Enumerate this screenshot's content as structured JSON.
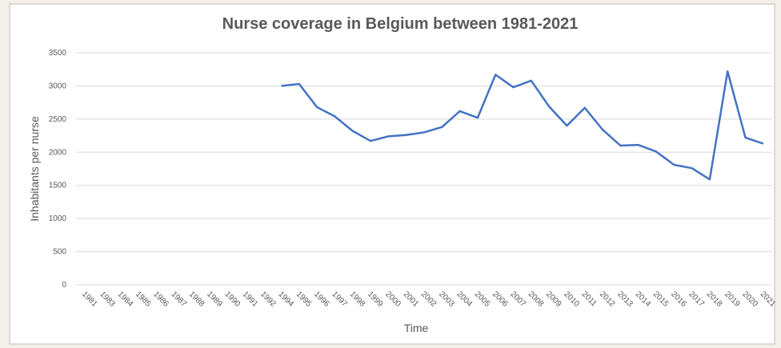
{
  "chart_data": {
    "type": "line",
    "title": "Nurse coverage in Belgium between 1981-2021",
    "xlabel": "Time",
    "ylabel": "Inhabitants per nurse",
    "categories": [
      "1981",
      "1983",
      "1984",
      "1985",
      "1986",
      "1987",
      "1988",
      "1989",
      "1990",
      "1991",
      "1992",
      "1994",
      "1995",
      "1996",
      "1997",
      "1998",
      "1999",
      "2000",
      "2001",
      "2002",
      "2003",
      "2004",
      "2005",
      "2006",
      "2007",
      "2008",
      "2009",
      "2010",
      "2011",
      "2012",
      "2013",
      "2014",
      "2015",
      "2016",
      "2017",
      "2018",
      "2019",
      "2020",
      "2021"
    ],
    "series": [
      {
        "name": "Inhabitants per nurse",
        "color": "#4472c4",
        "values": [
          null,
          null,
          null,
          null,
          null,
          null,
          null,
          null,
          null,
          null,
          null,
          3000,
          3030,
          2680,
          2540,
          2320,
          2170,
          2240,
          2260,
          2300,
          2380,
          2620,
          2520,
          3170,
          2980,
          3080,
          2690,
          2400,
          2670,
          2340,
          2100,
          2110,
          2010,
          1810,
          1760,
          1590,
          3220,
          2220,
          2130
        ]
      }
    ],
    "ylim": [
      0,
      3500
    ],
    "yticks": [
      0,
      500,
      1000,
      1500,
      2000,
      2500,
      3000,
      3500
    ],
    "grid": true
  }
}
